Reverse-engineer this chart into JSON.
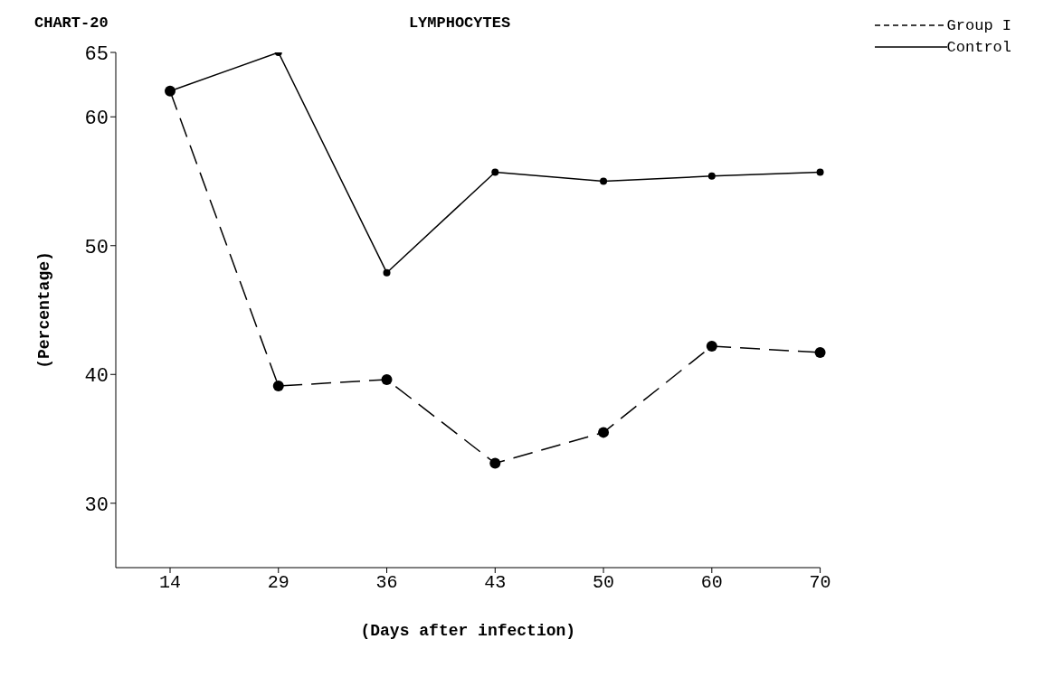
{
  "chart_data": {
    "type": "line",
    "title": "LYMPHOCYTES",
    "xlabel": "(Days after infection)",
    "ylabel": "(Percentage)",
    "annotations": [
      "CHART-20"
    ],
    "categories": [
      "14",
      "29",
      "36",
      "43",
      "50",
      "60",
      "70"
    ],
    "series": [
      {
        "name": "Group I",
        "color": "#000000",
        "line_style": "dashed",
        "values": [
          62,
          39.1,
          39.6,
          33.1,
          35.5,
          42.2,
          41.7
        ]
      },
      {
        "name": "Control",
        "color": "#000000",
        "line_style": "solid",
        "values": [
          62,
          65,
          47.9,
          55.7,
          55,
          55.4,
          55.7
        ]
      }
    ],
    "ylim": [
      25,
      65
    ],
    "yticks": [
      30,
      40,
      50,
      60,
      65
    ],
    "grid": false,
    "legend": "top right",
    "marker": "circle"
  }
}
